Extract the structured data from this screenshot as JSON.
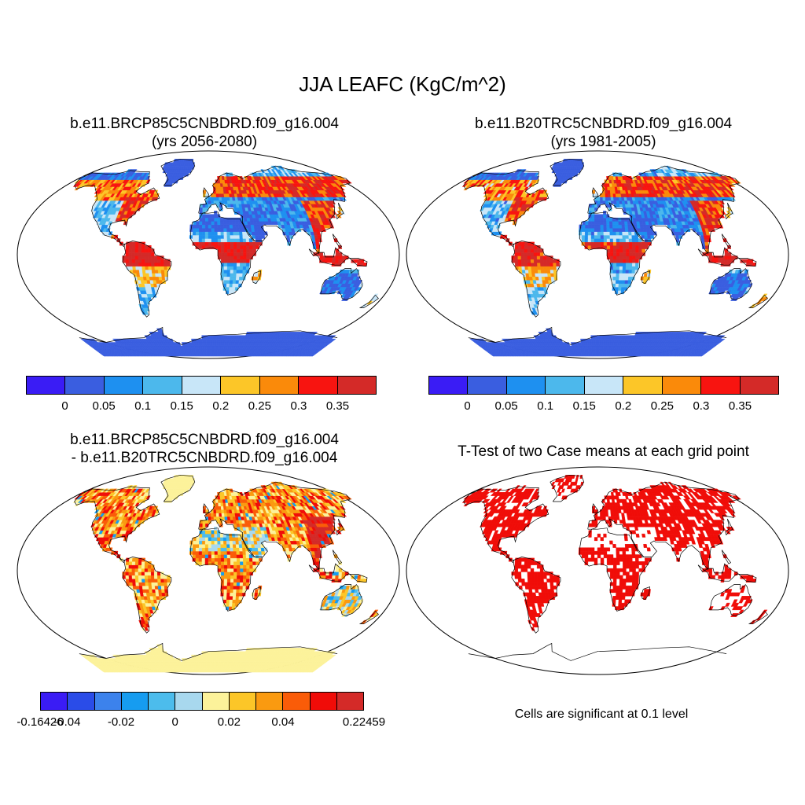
{
  "title": "JJA LEAFC (KgC/m^2)",
  "panels": {
    "p1": {
      "line1": "b.e11.BRCP85C5CNBDRD.f09_g16.004",
      "line2": "(yrs 2056-2080)"
    },
    "p2": {
      "line1": "b.e11.B20TRC5CNBDRD.f09_g16.004",
      "line2": "(yrs 1981-2005)"
    },
    "p3": {
      "line1": "b.e11.BRCP85C5CNBDRD.f09_g16.004",
      "line2": "- b.e11.B20TRC5CNBDRD.f09_g16.004"
    },
    "p4": {
      "line1": "T-Test of two Case means at each grid point"
    }
  },
  "colorbar_abs": {
    "colors": [
      "#3a1cf5",
      "#3a5ee0",
      "#1e90f0",
      "#4cb8ec",
      "#c8e6f8",
      "#fcc628",
      "#fa8a0a",
      "#f81410",
      "#d42a28"
    ],
    "ticks": [
      "0",
      "0.05",
      "0.1",
      "0.15",
      "0.2",
      "0.25",
      "0.3",
      "0.35"
    ]
  },
  "colorbar_diff": {
    "colors": [
      "#3a1cf5",
      "#2a4ce8",
      "#3c82ec",
      "#169cf0",
      "#4cbcec",
      "#a8d8ee",
      "#fcf29a",
      "#fcc628",
      "#fa9a10",
      "#fa5c08",
      "#f00c08",
      "#d42a28"
    ],
    "ticks": [
      "-0.16426",
      "-0.04",
      "-0.02",
      "0",
      "0.02",
      "0.04",
      "0.22459"
    ]
  },
  "note": "Cells are significant at 0.1 level",
  "palette": {
    "ocean": "#ffffff",
    "land_low": "#3a5ee0",
    "land_high": "#d42a28",
    "diff_base": "#fcf29a",
    "signif": "#f00c08"
  }
}
